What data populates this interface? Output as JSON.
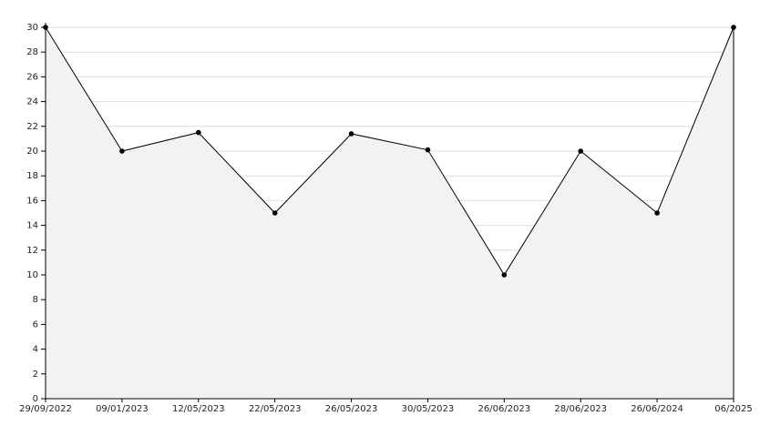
{
  "chart_data": {
    "type": "area",
    "categories": [
      "29/09/2022",
      "09/01/2023",
      "12/05/2023",
      "22/05/2023",
      "26/05/2023",
      "30/05/2023",
      "26/06/2023",
      "28/06/2023",
      "26/06/2024",
      "06/2025"
    ],
    "values": [
      30,
      20,
      21.5,
      15,
      21.4,
      20.1,
      10,
      20,
      15,
      30
    ],
    "color": "#000000",
    "fill_color": "#f2f2f2",
    "grid_color": "#dddddd",
    "ylim": [
      0,
      30
    ],
    "yticks": [
      0,
      2,
      4,
      6,
      8,
      10,
      12,
      14,
      16,
      18,
      20,
      22,
      24,
      26,
      28,
      30
    ],
    "grid": true
  }
}
